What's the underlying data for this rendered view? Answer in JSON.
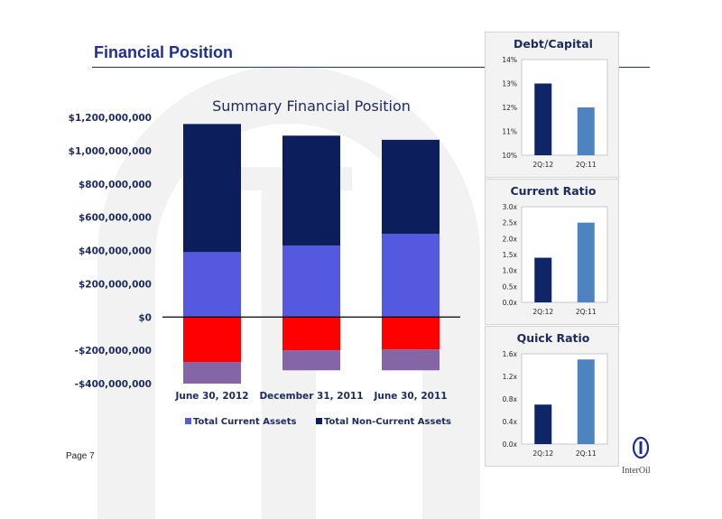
{
  "page": {
    "title": "Financial Position",
    "page_label": "Page 7"
  },
  "colors": {
    "brand": "#1f2f8f",
    "non_current_assets": "#0c1f5c",
    "current_assets": "#5459df",
    "current_liabilities": "#ff0000",
    "non_current_liabilities": "#8466a6",
    "small_dark": "#0f2565",
    "small_light": "#4f82c0"
  },
  "logo": {
    "text": "InterOil"
  },
  "chart_data": [
    {
      "type": "bar",
      "stacked": true,
      "title": "Summary Financial Position",
      "categories": [
        "June 30, 2012",
        "December 31, 2011",
        "June 30, 2011"
      ],
      "series": [
        {
          "name": "Total Current Assets",
          "values": [
            390000000,
            430000000,
            500000000
          ]
        },
        {
          "name": "Total Non-Current Assets",
          "values": [
            770000000,
            660000000,
            565000000
          ]
        },
        {
          "values": [
            -270000000,
            -200000000,
            -195000000
          ]
        },
        {
          "values": [
            -130000000,
            -120000000,
            -125000000
          ]
        }
      ],
      "ylim": [
        -400000000,
        1200000000
      ],
      "yticks": [
        1200000000,
        1000000000,
        800000000,
        600000000,
        400000000,
        200000000,
        0,
        -200000000,
        -400000000
      ],
      "ytick_labels": [
        "$1,200,000,000",
        "$1,000,000,000",
        "$800,000,000",
        "$600,000,000",
        "$400,000,000",
        "$200,000,000",
        "$0",
        "-$200,000,000",
        "-$400,000,000"
      ],
      "legend": [
        "Total Current Assets",
        "Total Non-Current Assets"
      ],
      "legend_position": "bottom",
      "grid": false
    },
    {
      "type": "bar",
      "title": "Debt/Capital",
      "categories": [
        "2Q:12",
        "2Q:11"
      ],
      "values": [
        13,
        12
      ],
      "ylim": [
        10,
        14
      ],
      "yticks": [
        10,
        11,
        12,
        13,
        14
      ],
      "ytick_labels": [
        "10%",
        "11%",
        "12%",
        "13%",
        "14%"
      ],
      "grid": false
    },
    {
      "type": "bar",
      "title": "Current Ratio",
      "categories": [
        "2Q:12",
        "2Q:11"
      ],
      "values": [
        1.4,
        2.5
      ],
      "ylim": [
        0,
        3
      ],
      "yticks": [
        0,
        0.5,
        1,
        1.5,
        2,
        2.5,
        3
      ],
      "ytick_labels": [
        "0.0x",
        "0.5x",
        "1.0x",
        "1.5x",
        "2.0x",
        "2.5x",
        "3.0x"
      ],
      "grid": false
    },
    {
      "type": "bar",
      "title": "Quick Ratio",
      "categories": [
        "2Q:12",
        "2Q:11"
      ],
      "values": [
        0.7,
        1.5
      ],
      "ylim": [
        0,
        1.6
      ],
      "yticks": [
        0,
        0.4,
        0.8,
        1.2,
        1.6
      ],
      "ytick_labels": [
        "0.0x",
        "0.4x",
        "0.8x",
        "1.2x",
        "1.6x"
      ],
      "grid": false
    }
  ]
}
